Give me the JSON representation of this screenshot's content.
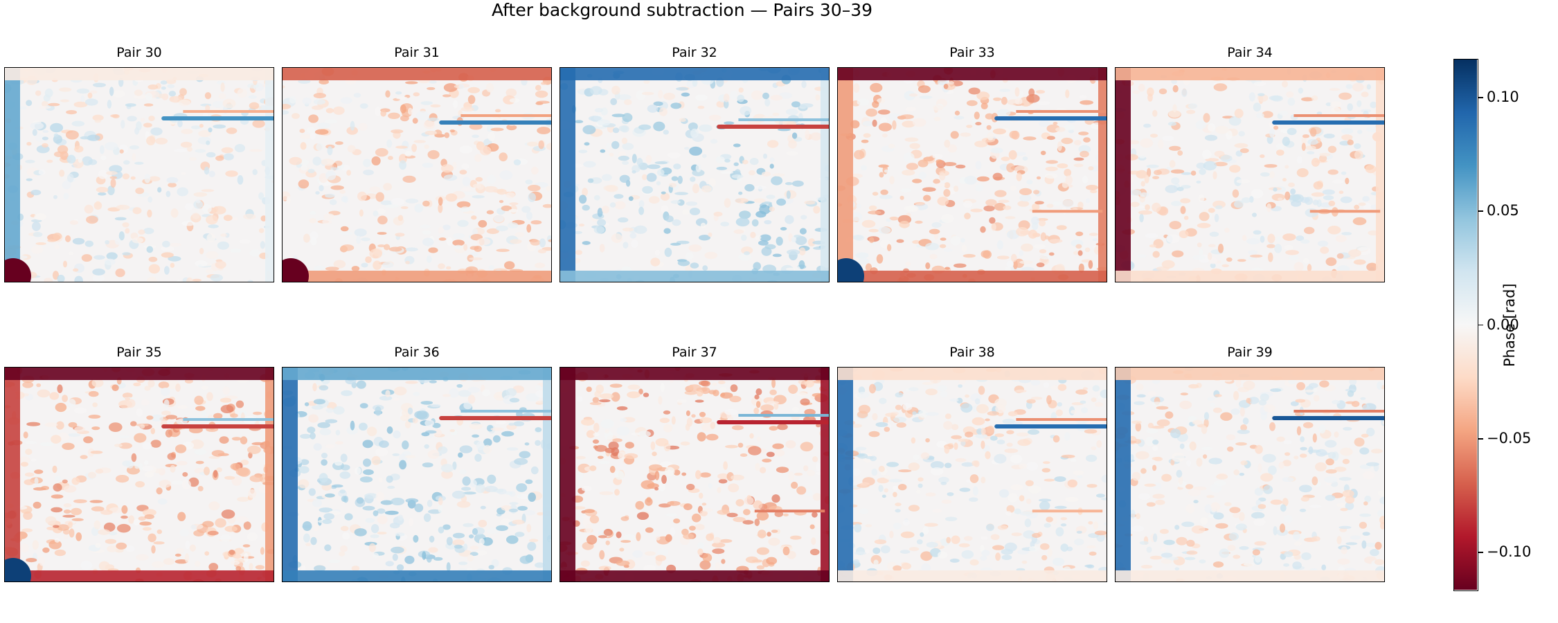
{
  "chart_data": {
    "type": "heatmap",
    "title": "After background subtraction — Pairs 30–39",
    "colormap": "RdBu",
    "colorbar": {
      "label": "Phase [rad]",
      "range": [
        -0.117,
        0.117
      ],
      "ticks": [
        0.1,
        0.05,
        0.0,
        -0.05,
        -0.1
      ],
      "tick_labels": [
        "0.10",
        "0.05",
        "0.00",
        "−0.05",
        "−0.10"
      ]
    },
    "panels": [
      {
        "title": "Pair 30",
        "edges": {
          "left": 0.06,
          "top": -0.01,
          "bottom": 0.0,
          "right": 0.01
        },
        "corner_bl": -0.12,
        "streak_sign": 0.07,
        "lower_streak": 0
      },
      {
        "title": "Pair 31",
        "edges": {
          "left": 0.0,
          "top": -0.07,
          "bottom": -0.05,
          "right": 0.0
        },
        "corner_bl": -0.12,
        "streak_sign": 0.08,
        "lower_streak": 0
      },
      {
        "title": "Pair 32",
        "edges": {
          "left": 0.09,
          "top": 0.09,
          "bottom": 0.05,
          "right": 0.02
        },
        "corner_bl": 0.0,
        "streak_sign": -0.08,
        "lower_streak": 0
      },
      {
        "title": "Pair 33",
        "edges": {
          "left": -0.05,
          "top": -0.12,
          "bottom": -0.07,
          "right": -0.06
        },
        "corner_bl": 0.11,
        "streak_sign": 0.09,
        "lower_streak": -0.05
      },
      {
        "title": "Pair 34",
        "edges": {
          "left": -0.12,
          "top": -0.04,
          "bottom": -0.02,
          "right": -0.02
        },
        "corner_bl": 0.0,
        "streak_sign": 0.09,
        "lower_streak": -0.05
      },
      {
        "title": "Pair 35",
        "edges": {
          "left": -0.08,
          "top": -0.12,
          "bottom": -0.09,
          "right": -0.05
        },
        "corner_bl": 0.11,
        "streak_sign": -0.08,
        "lower_streak": 0
      },
      {
        "title": "Pair 36",
        "edges": {
          "left": 0.09,
          "top": 0.06,
          "bottom": 0.08,
          "right": 0.03
        },
        "corner_bl": 0.0,
        "streak_sign": -0.08,
        "lower_streak": 0
      },
      {
        "title": "Pair 37",
        "edges": {
          "left": -0.12,
          "top": -0.12,
          "bottom": -0.12,
          "right": -0.1
        },
        "corner_bl": 0.0,
        "streak_sign": -0.09,
        "lower_streak": -0.06
      },
      {
        "title": "Pair 38",
        "edges": {
          "left": 0.09,
          "top": -0.02,
          "bottom": -0.01,
          "right": 0.0
        },
        "corner_bl": 0.0,
        "streak_sign": 0.09,
        "lower_streak": -0.04
      },
      {
        "title": "Pair 39",
        "edges": {
          "left": 0.09,
          "top": -0.03,
          "bottom": -0.01,
          "right": 0.0
        },
        "corner_bl": 0.0,
        "streak_sign": 0.1,
        "lower_streak": 0
      }
    ]
  }
}
